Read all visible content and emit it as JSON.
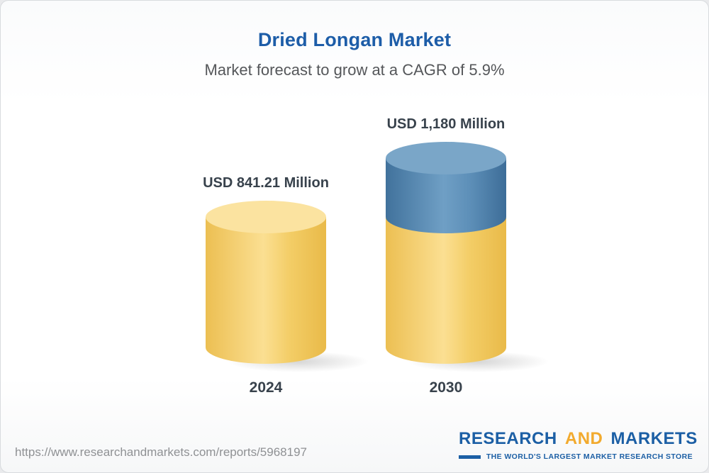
{
  "header": {
    "title": "Dried Longan Market",
    "subtitle": "Market forecast to grow at a CAGR of 5.9%"
  },
  "chart_data": {
    "type": "bar",
    "title": "Dried Longan Market",
    "subtitle": "Market forecast to grow at a CAGR of 5.9%",
    "unit": "USD Million",
    "cagr_percent": 5.9,
    "categories": [
      "2024",
      "2030"
    ],
    "values": [
      841.21,
      1180
    ],
    "value_labels": [
      "USD 841.21 Million",
      "USD 1,180 Million"
    ],
    "ylim": [
      0,
      1180
    ],
    "grid": false,
    "legend": "none",
    "colors": {
      "base_segment_yellow": "#f3cd66",
      "growth_segment_blue": "#5688b3",
      "title_blue": "#1d5da8",
      "label_dark": "#38424c"
    }
  },
  "footer": {
    "report_url": "https://www.researchandmarkets.com/reports/5968197",
    "logo": {
      "word_research": "RESEARCH",
      "word_and": "AND",
      "word_markets": "MARKETS",
      "tagline": "THE WORLD'S LARGEST MARKET RESEARCH STORE"
    }
  }
}
